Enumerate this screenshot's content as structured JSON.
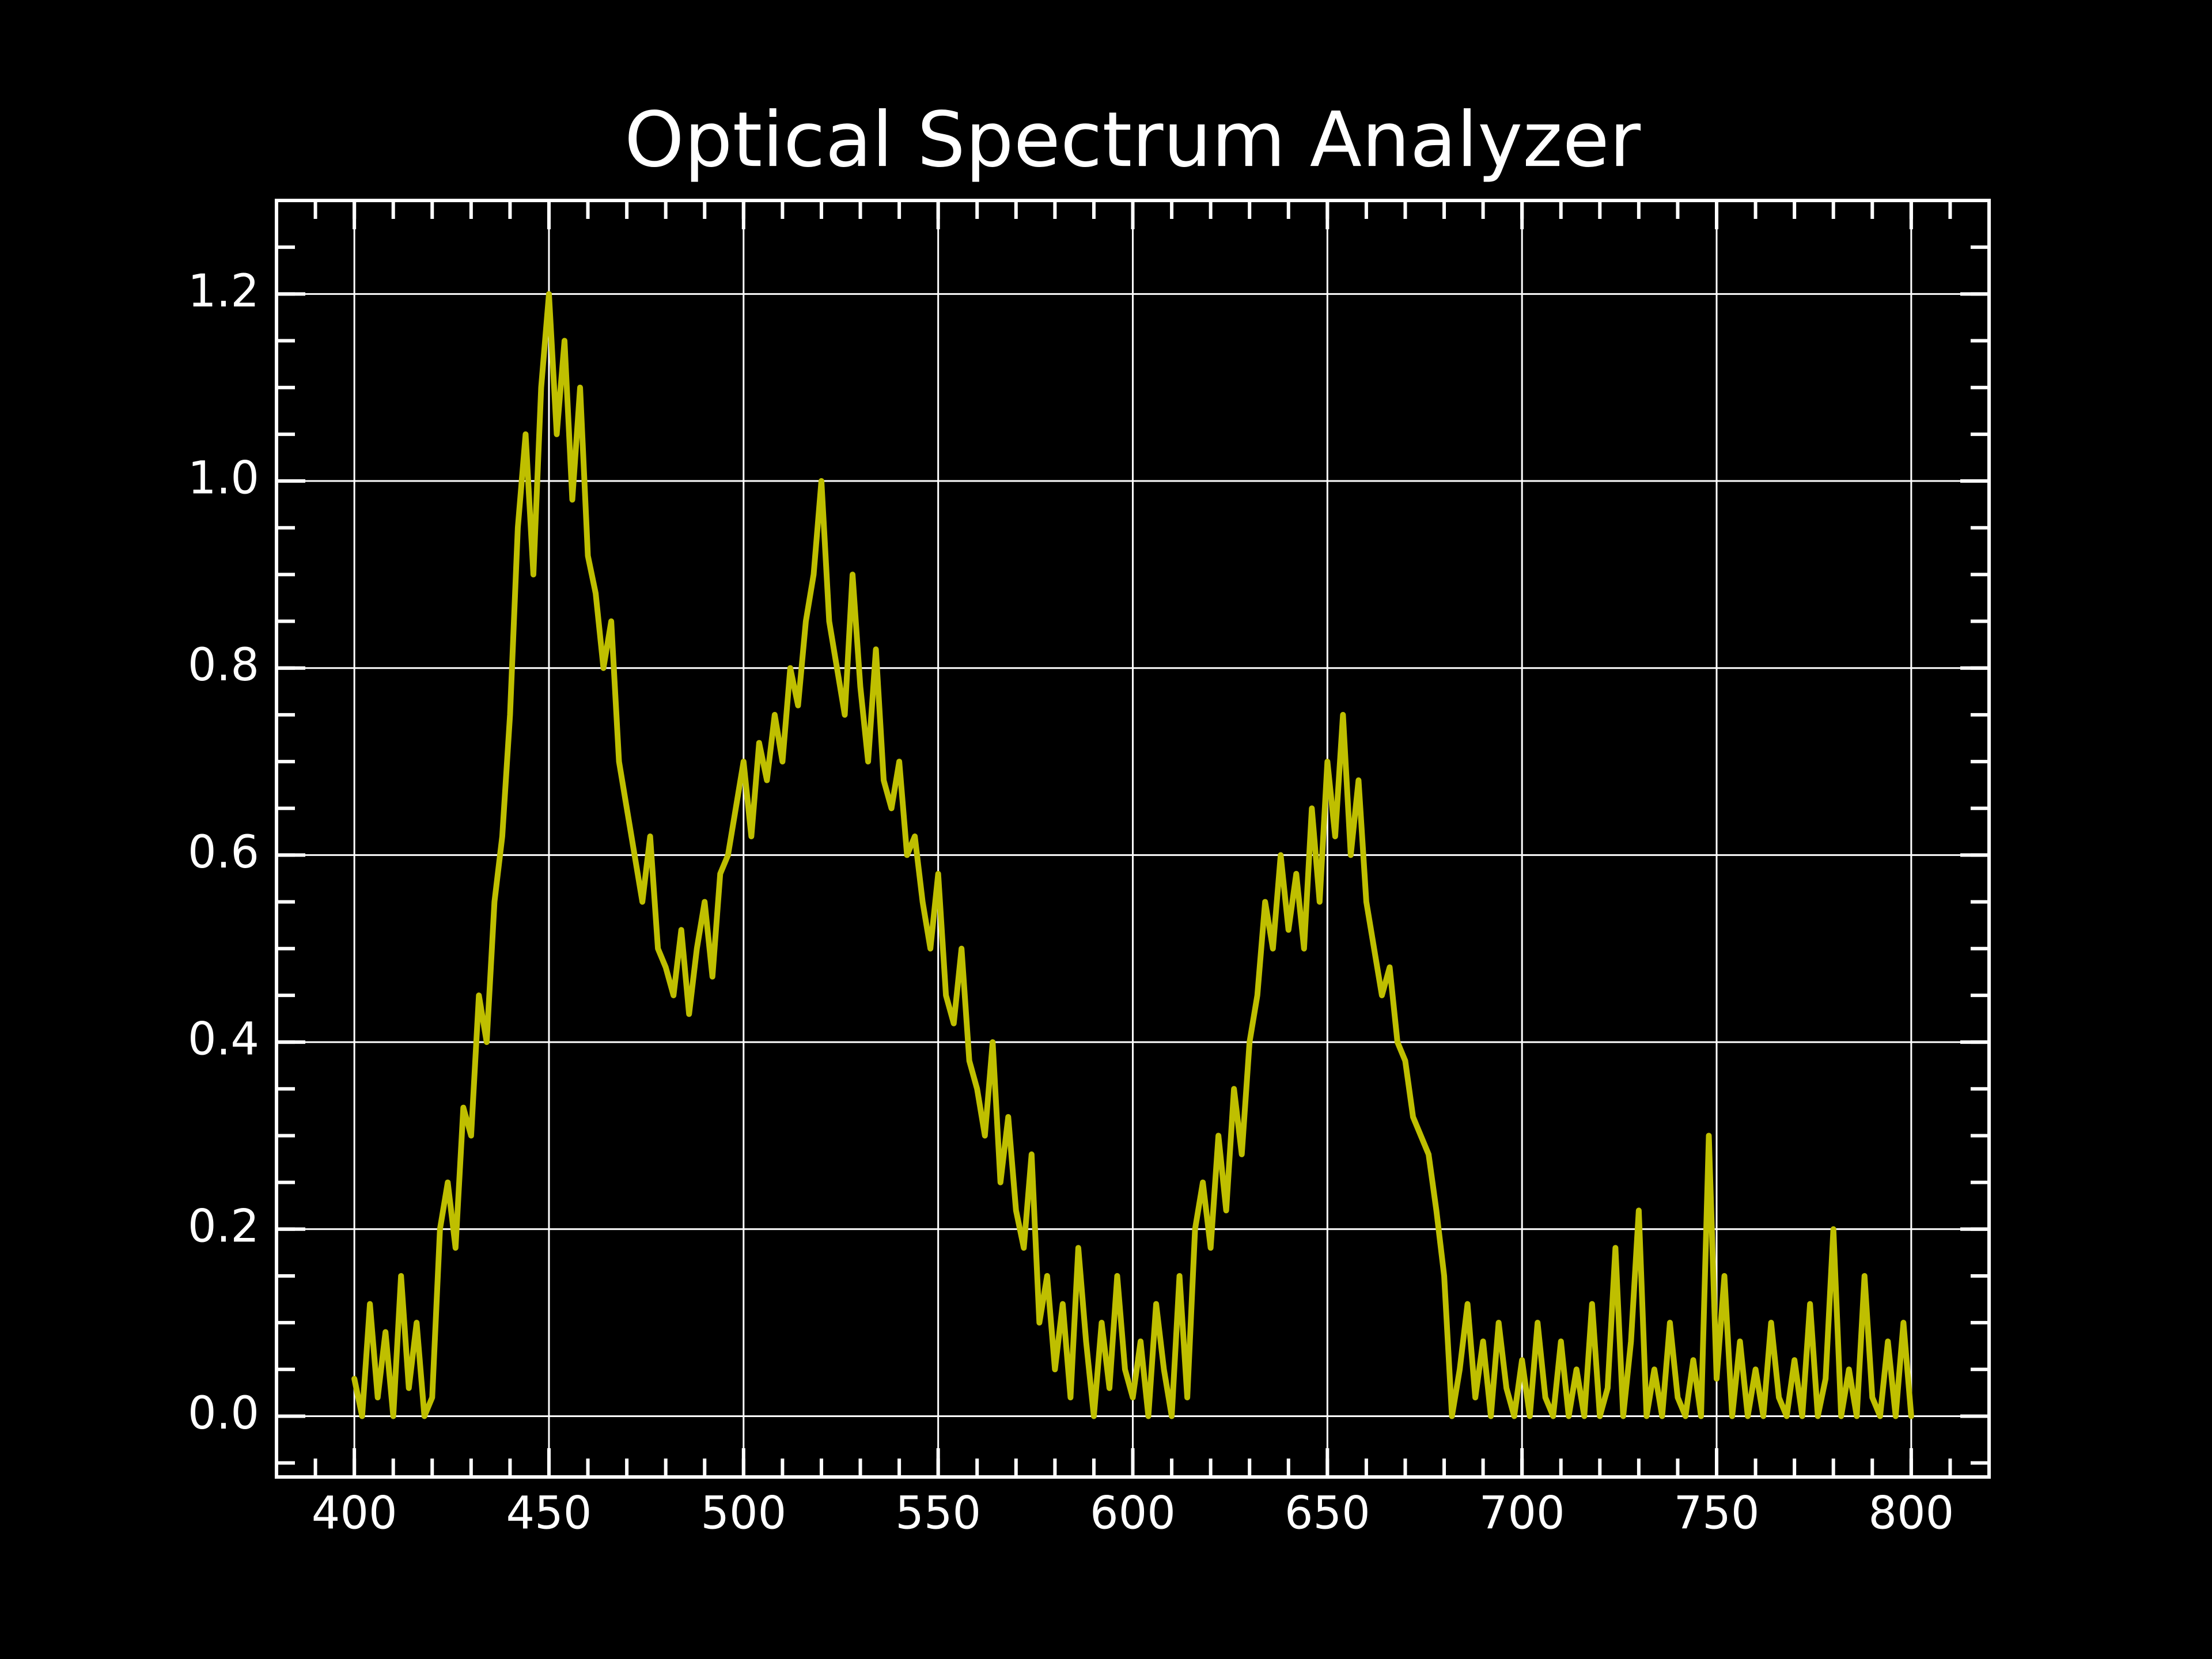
{
  "chart_data": {
    "type": "line",
    "title": "Optical Spectrum Analyzer",
    "x": [
      400,
      402,
      404,
      406,
      408,
      410,
      412,
      414,
      416,
      418,
      420,
      422,
      424,
      426,
      428,
      430,
      432,
      434,
      436,
      438,
      440,
      442,
      444,
      446,
      448,
      450,
      452,
      454,
      456,
      458,
      460,
      462,
      464,
      466,
      468,
      470,
      472,
      474,
      476,
      478,
      480,
      482,
      484,
      486,
      488,
      490,
      492,
      494,
      496,
      498,
      500,
      502,
      504,
      506,
      508,
      510,
      512,
      514,
      516,
      518,
      520,
      522,
      524,
      526,
      528,
      530,
      532,
      534,
      536,
      538,
      540,
      542,
      544,
      546,
      548,
      550,
      552,
      554,
      556,
      558,
      560,
      562,
      564,
      566,
      568,
      570,
      572,
      574,
      576,
      578,
      580,
      582,
      584,
      586,
      588,
      590,
      592,
      594,
      596,
      598,
      600,
      602,
      604,
      606,
      608,
      610,
      612,
      614,
      616,
      618,
      620,
      622,
      624,
      626,
      628,
      630,
      632,
      634,
      636,
      638,
      640,
      642,
      644,
      646,
      648,
      650,
      652,
      654,
      656,
      658,
      660,
      662,
      664,
      666,
      668,
      670,
      672,
      674,
      676,
      678,
      680,
      682,
      684,
      686,
      688,
      690,
      692,
      694,
      696,
      698,
      700,
      702,
      704,
      706,
      708,
      710,
      712,
      714,
      716,
      718,
      720,
      722,
      724,
      726,
      728,
      730,
      732,
      734,
      736,
      738,
      740,
      742,
      744,
      746,
      748,
      750,
      752,
      754,
      756,
      758,
      760,
      762,
      764,
      766,
      768,
      770,
      772,
      774,
      776,
      778,
      780,
      782,
      784,
      786,
      788,
      790,
      792,
      794,
      796,
      798,
      800
    ],
    "series": [
      {
        "color": "#bfbf00",
        "values": [
          0.04,
          0.0,
          0.12,
          0.02,
          0.09,
          0.0,
          0.15,
          0.03,
          0.1,
          0.0,
          0.02,
          0.2,
          0.25,
          0.18,
          0.33,
          0.3,
          0.45,
          0.4,
          0.55,
          0.62,
          0.75,
          0.95,
          1.05,
          0.9,
          1.1,
          1.2,
          1.05,
          1.15,
          0.98,
          1.1,
          0.92,
          0.88,
          0.8,
          0.85,
          0.7,
          0.65,
          0.6,
          0.55,
          0.62,
          0.5,
          0.48,
          0.45,
          0.52,
          0.43,
          0.5,
          0.55,
          0.47,
          0.58,
          0.6,
          0.65,
          0.7,
          0.62,
          0.72,
          0.68,
          0.75,
          0.7,
          0.8,
          0.76,
          0.85,
          0.9,
          1.0,
          0.85,
          0.8,
          0.75,
          0.9,
          0.78,
          0.7,
          0.82,
          0.68,
          0.65,
          0.7,
          0.6,
          0.62,
          0.55,
          0.5,
          0.58,
          0.45,
          0.42,
          0.5,
          0.38,
          0.35,
          0.3,
          0.4,
          0.25,
          0.32,
          0.22,
          0.18,
          0.28,
          0.1,
          0.15,
          0.05,
          0.12,
          0.02,
          0.18,
          0.08,
          0.0,
          0.1,
          0.03,
          0.15,
          0.05,
          0.02,
          0.08,
          0.0,
          0.12,
          0.05,
          0.0,
          0.15,
          0.02,
          0.2,
          0.25,
          0.18,
          0.3,
          0.22,
          0.35,
          0.28,
          0.4,
          0.45,
          0.55,
          0.5,
          0.6,
          0.52,
          0.58,
          0.5,
          0.65,
          0.55,
          0.7,
          0.62,
          0.75,
          0.6,
          0.68,
          0.55,
          0.5,
          0.45,
          0.48,
          0.4,
          0.38,
          0.32,
          0.3,
          0.28,
          0.22,
          0.15,
          0.0,
          0.05,
          0.12,
          0.02,
          0.08,
          0.0,
          0.1,
          0.03,
          0.0,
          0.06,
          0.0,
          0.1,
          0.02,
          0.0,
          0.08,
          0.0,
          0.05,
          0.0,
          0.12,
          0.0,
          0.03,
          0.18,
          0.0,
          0.08,
          0.22,
          0.0,
          0.05,
          0.0,
          0.1,
          0.02,
          0.0,
          0.06,
          0.0,
          0.3,
          0.04,
          0.15,
          0.0,
          0.08,
          0.0,
          0.05,
          0.0,
          0.1,
          0.02,
          0.0,
          0.06,
          0.0,
          0.12,
          0.0,
          0.04,
          0.2,
          0.0,
          0.05,
          0.0,
          0.15,
          0.02,
          0.0,
          0.08,
          0.0,
          0.1,
          0.0
        ]
      }
    ],
    "xlim": [
      380,
      820
    ],
    "xticks": [
      400,
      450,
      500,
      550,
      600,
      650,
      700,
      750,
      800
    ],
    "ylim": [
      -0.065,
      1.3
    ],
    "yticks": [
      {
        "value": 0,
        "label": "0.0"
      },
      0.2,
      0.4,
      0.6,
      0.8,
      {
        "value": 1,
        "label": "1.0"
      },
      1.2
    ],
    "xminor_step": 10,
    "yminor_step": 0.05,
    "grid": true
  }
}
